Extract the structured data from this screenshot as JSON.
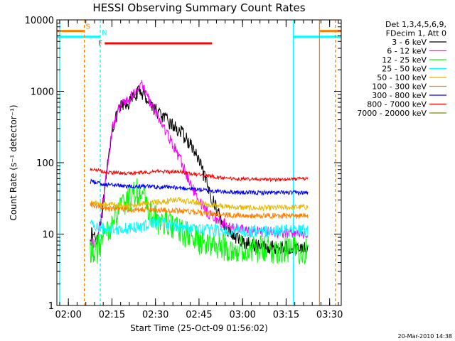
{
  "chart_data": {
    "type": "line",
    "title": "HESSI Observing Summary Count Rates",
    "xlabel": "Start Time (25-Oct-09 01:56:02)",
    "ylabel": "Count Rate (s⁻¹ detector⁻¹)",
    "y_scale": "log",
    "ylim": [
      1,
      10000
    ],
    "xlim": [
      "01:56:02",
      "03:34:00"
    ],
    "x_ticks": [
      "02:00",
      "02:15",
      "02:30",
      "02:45",
      "03:00",
      "03:15",
      "03:30"
    ],
    "y_ticks": [
      "1",
      "10",
      "100",
      "1000",
      "10000"
    ],
    "timestamp": "20-Mar-2010 14:38",
    "legend": {
      "placement": "top-right",
      "header_lines": [
        "Det 1,3,4,5,6,9,",
        "FDecim 1, Att 0"
      ]
    },
    "flags": [
      {
        "label": "S",
        "color": "#ff8000",
        "segments": [
          [
            "01:56:02",
            "02:05:30"
          ],
          [
            "03:26:30",
            "03:34:00"
          ]
        ],
        "value": 7000
      },
      {
        "label": "N",
        "color": "#00ffff",
        "segments": [
          [
            "01:56:02",
            "02:11:00"
          ],
          [
            "03:17:30",
            "03:34:00"
          ]
        ],
        "value": 5800
      },
      {
        "label": "F",
        "color": "#ff0000",
        "segments": [
          [
            "02:12:30",
            "02:49:30"
          ]
        ],
        "value": 4700
      }
    ],
    "vlines": [
      {
        "time": "01:57:00",
        "color": "#00ffff",
        "style": "solid"
      },
      {
        "time": "02:05:30",
        "color": "#ff8000",
        "style": "dashed"
      },
      {
        "time": "02:11:00",
        "color": "#00ffff",
        "style": "dashed"
      },
      {
        "time": "03:17:30",
        "color": "#00ffff",
        "style": "solid"
      },
      {
        "time": "03:26:30",
        "color": "#ff8000",
        "style": "solid"
      },
      {
        "time": "03:32:00",
        "color": "#ff8000",
        "style": "dashed"
      }
    ],
    "series": [
      {
        "name": "3 - 6 keV",
        "color": "#000000",
        "noise": 0.1,
        "points": [
          [
            "02:07:30",
            10
          ],
          [
            "02:10:00",
            9
          ],
          [
            "02:12:00",
            25
          ],
          [
            "02:15:00",
            300
          ],
          [
            "02:18:00",
            600
          ],
          [
            "02:21:00",
            700
          ],
          [
            "02:23:00",
            900
          ],
          [
            "02:25:00",
            1000
          ],
          [
            "02:27:00",
            800
          ],
          [
            "02:30:00",
            550
          ],
          [
            "02:33:00",
            420
          ],
          [
            "02:36:00",
            330
          ],
          [
            "02:39:00",
            260
          ],
          [
            "02:42:00",
            180
          ],
          [
            "02:44:00",
            130
          ],
          [
            "02:46:00",
            80
          ],
          [
            "02:48:00",
            45
          ],
          [
            "02:50:00",
            28
          ],
          [
            "02:53:00",
            15
          ],
          [
            "02:57:00",
            9
          ],
          [
            "03:03:00",
            7
          ],
          [
            "03:10:00",
            6.5
          ],
          [
            "03:22:30",
            6.5
          ]
        ]
      },
      {
        "name": "6 - 12 keV",
        "color": "#ff00ff",
        "noise": 0.08,
        "points": [
          [
            "02:07:30",
            7
          ],
          [
            "02:10:00",
            8
          ],
          [
            "02:12:00",
            30
          ],
          [
            "02:15:00",
            300
          ],
          [
            "02:18:00",
            650
          ],
          [
            "02:21:00",
            750
          ],
          [
            "02:23:00",
            1000
          ],
          [
            "02:25:00",
            1300
          ],
          [
            "02:27:00",
            900
          ],
          [
            "02:30:00",
            500
          ],
          [
            "02:33:00",
            300
          ],
          [
            "02:36:00",
            180
          ],
          [
            "02:39:00",
            100
          ],
          [
            "02:42:00",
            50
          ],
          [
            "02:45:00",
            30
          ],
          [
            "02:48:00",
            20
          ],
          [
            "02:52:00",
            15
          ],
          [
            "02:57:00",
            12
          ],
          [
            "03:03:00",
            11
          ],
          [
            "03:10:00",
            10.5
          ],
          [
            "03:22:30",
            10
          ]
        ]
      },
      {
        "name": "12 - 25 keV",
        "color": "#00ff00",
        "noise": 0.2,
        "points": [
          [
            "02:07:30",
            6
          ],
          [
            "02:10:00",
            6
          ],
          [
            "02:13:00",
            10
          ],
          [
            "02:17:00",
            20
          ],
          [
            "02:20:00",
            28
          ],
          [
            "02:22:30",
            35
          ],
          [
            "02:24:00",
            40
          ],
          [
            "02:26:00",
            32
          ],
          [
            "02:28:00",
            20
          ],
          [
            "02:31:00",
            15
          ],
          [
            "02:34:00",
            14
          ],
          [
            "02:37:00",
            12
          ],
          [
            "02:40:00",
            10
          ],
          [
            "02:45:00",
            8
          ],
          [
            "02:50:00",
            7
          ],
          [
            "02:55:00",
            6.5
          ],
          [
            "03:05:00",
            6
          ],
          [
            "03:22:30",
            6
          ]
        ]
      },
      {
        "name": "25 - 50 keV",
        "color": "#00ffff",
        "noise": 0.09,
        "points": [
          [
            "02:07:30",
            14
          ],
          [
            "02:12:00",
            12
          ],
          [
            "02:17:00",
            12
          ],
          [
            "02:22:00",
            12
          ],
          [
            "02:26:00",
            13
          ],
          [
            "02:30:00",
            15
          ],
          [
            "02:34:00",
            14
          ],
          [
            "02:40:00",
            12
          ],
          [
            "02:46:00",
            11.5
          ],
          [
            "02:55:00",
            11
          ],
          [
            "03:05:00",
            11
          ],
          [
            "03:22:30",
            11
          ]
        ]
      },
      {
        "name": "50 - 100 keV",
        "color": "#e6b800",
        "noise": 0.04,
        "points": [
          [
            "02:07:30",
            28
          ],
          [
            "02:12:00",
            26
          ],
          [
            "02:20:00",
            25
          ],
          [
            "02:30:00",
            28
          ],
          [
            "02:38:00",
            30
          ],
          [
            "02:45:00",
            27
          ],
          [
            "02:55:00",
            24
          ],
          [
            "03:05:00",
            23
          ],
          [
            "03:22:30",
            24
          ]
        ]
      },
      {
        "name": "100 - 300 keV",
        "color": "#ff8000",
        "noise": 0.04,
        "points": [
          [
            "02:07:30",
            26
          ],
          [
            "02:12:00",
            23
          ],
          [
            "02:20:00",
            22
          ],
          [
            "02:30:00",
            22
          ],
          [
            "02:40:00",
            21
          ],
          [
            "02:50:00",
            19
          ],
          [
            "03:00:00",
            18
          ],
          [
            "03:10:00",
            18
          ],
          [
            "03:22:30",
            18
          ]
        ]
      },
      {
        "name": "300 - 800 keV",
        "color": "#0000ff",
        "noise": 0.03,
        "points": [
          [
            "02:07:30",
            55
          ],
          [
            "02:12:00",
            50
          ],
          [
            "02:20:00",
            47
          ],
          [
            "02:30:00",
            46
          ],
          [
            "02:40:00",
            44
          ],
          [
            "02:50:00",
            40
          ],
          [
            "03:00:00",
            38
          ],
          [
            "03:10:00",
            38
          ],
          [
            "03:22:30",
            38
          ]
        ]
      },
      {
        "name": "800 - 7000 keV",
        "color": "#ff0000",
        "noise": 0.025,
        "points": [
          [
            "02:07:30",
            82
          ],
          [
            "02:12:00",
            75
          ],
          [
            "02:20:00",
            70
          ],
          [
            "02:30:00",
            75
          ],
          [
            "02:38:00",
            75
          ],
          [
            "02:45:00",
            68
          ],
          [
            "02:55:00",
            60
          ],
          [
            "03:05:00",
            58
          ],
          [
            "03:15:00",
            58
          ],
          [
            "03:22:30",
            60
          ]
        ]
      },
      {
        "name": "7000 - 20000 keV",
        "color": "#808000",
        "noise": 0,
        "points": []
      }
    ]
  }
}
